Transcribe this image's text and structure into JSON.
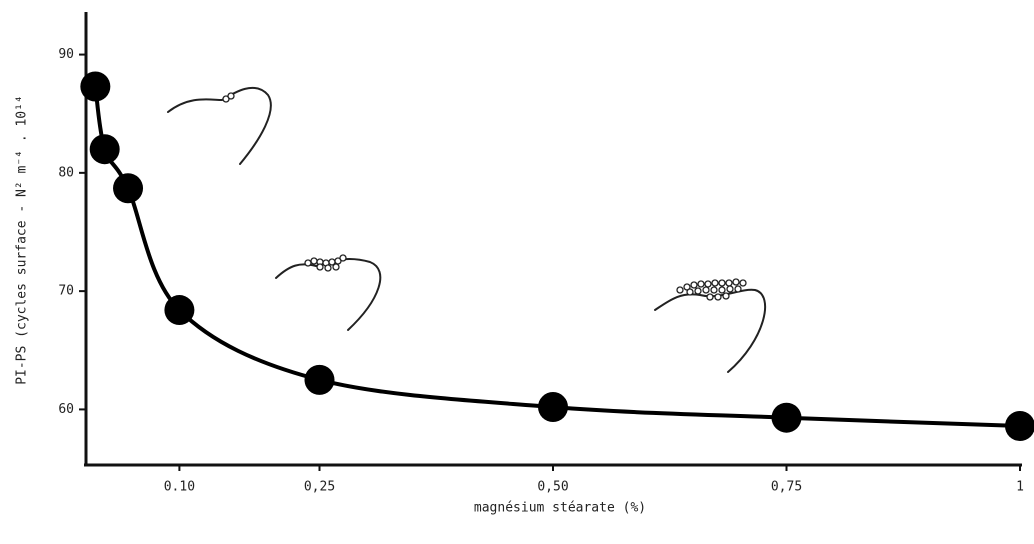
{
  "chart_data": {
    "type": "scatter",
    "x_label": "magnésium stéarate (%)",
    "y_label": "PI-PS (cycles surface - N² m⁻⁴ . 10¹⁴",
    "x": [
      0.01,
      0.02,
      0.045,
      0.1,
      0.25,
      0.5,
      0.75,
      1
    ],
    "values": [
      87.3,
      82.0,
      78.7,
      68.4,
      62.5,
      60.2,
      59.3,
      58.6
    ],
    "color": "#000000",
    "fit_line": true,
    "xlim": [
      0,
      1
    ],
    "ylim": [
      55.3,
      93.6
    ],
    "xticks": [
      {
        "value": 0.1,
        "label": "0.10"
      },
      {
        "value": 0.25,
        "label": "0,25"
      },
      {
        "value": 0.5,
        "label": "0,50"
      },
      {
        "value": 0.75,
        "label": "0,75"
      },
      1
    ],
    "yticks": [
      60,
      70,
      80,
      90
    ]
  }
}
